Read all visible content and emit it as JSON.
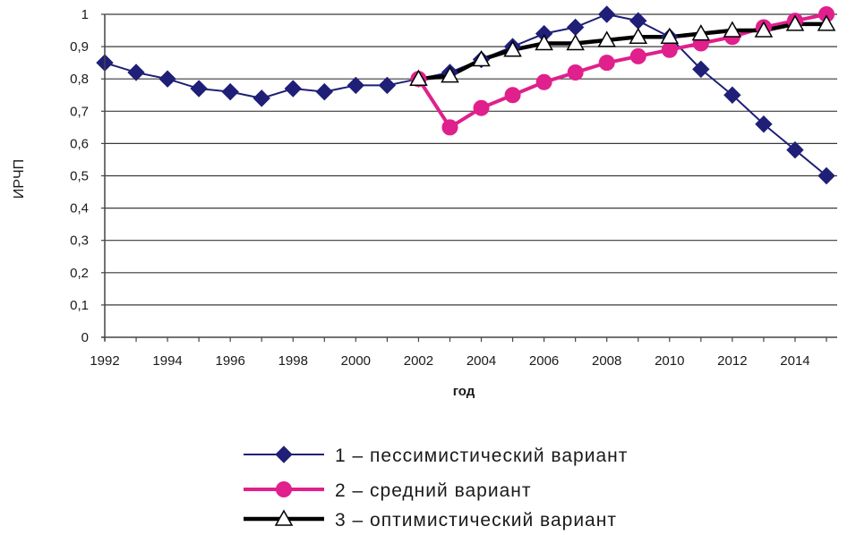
{
  "chart_data": {
    "type": "line",
    "xlabel": "год",
    "ylabel": "ИРЧП",
    "x": [
      1992,
      1993,
      1994,
      1995,
      1996,
      1997,
      1998,
      1999,
      2000,
      2001,
      2002,
      2003,
      2004,
      2005,
      2006,
      2007,
      2008,
      2009,
      2010,
      2011,
      2012,
      2013,
      2014,
      2015
    ],
    "xlim": [
      1992,
      2015
    ],
    "ylim": [
      0,
      1
    ],
    "x_tick_labels": [
      "1992",
      "1994",
      "1996",
      "1998",
      "2000",
      "2002",
      "2004",
      "2006",
      "2008",
      "2010",
      "2012",
      "2014"
    ],
    "y_tick_labels": [
      "0",
      "0,1",
      "0,2",
      "0,3",
      "0,4",
      "0,5",
      "0,6",
      "0,7",
      "0,8",
      "0,9",
      "1"
    ],
    "grid": true,
    "legend_placement": "bottom",
    "series": [
      {
        "name": "1 – пессимистический вариант",
        "color": "#1f1f78",
        "marker": "diamond",
        "x": [
          1992,
          1993,
          1994,
          1995,
          1996,
          1997,
          1998,
          1999,
          2000,
          2001,
          2002,
          2003,
          2004,
          2005,
          2006,
          2007,
          2008,
          2009,
          2010,
          2011,
          2012,
          2013,
          2014,
          2015
        ],
        "values": [
          0.85,
          0.82,
          0.8,
          0.77,
          0.76,
          0.74,
          0.77,
          0.76,
          0.78,
          0.78,
          0.8,
          0.82,
          0.86,
          0.9,
          0.94,
          0.96,
          1.0,
          0.98,
          0.93,
          0.83,
          0.75,
          0.66,
          0.58,
          0.5
        ]
      },
      {
        "name": "2 – средний вариант",
        "color": "#e0208c",
        "marker": "circle",
        "x": [
          2002,
          2003,
          2004,
          2005,
          2006,
          2007,
          2008,
          2009,
          2010,
          2011,
          2012,
          2013,
          2014,
          2015
        ],
        "values": [
          0.8,
          0.65,
          0.71,
          0.75,
          0.79,
          0.82,
          0.85,
          0.87,
          0.89,
          0.91,
          0.93,
          0.96,
          0.98,
          1.0
        ]
      },
      {
        "name": "3 – оптимистический вариант",
        "color": "#000000",
        "marker": "triangle",
        "x": [
          2002,
          2003,
          2004,
          2005,
          2006,
          2007,
          2008,
          2009,
          2010,
          2011,
          2012,
          2013,
          2014,
          2015
        ],
        "values": [
          0.8,
          0.81,
          0.86,
          0.89,
          0.91,
          0.91,
          0.92,
          0.93,
          0.93,
          0.94,
          0.95,
          0.95,
          0.97,
          0.97
        ]
      }
    ]
  }
}
